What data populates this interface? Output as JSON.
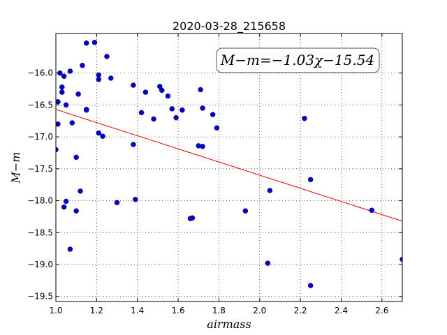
{
  "chart_data": {
    "type": "scatter",
    "title": "2020-03-28_215658",
    "xlabel": "airmass",
    "ylabel": "M−m",
    "xlim": [
      1.0,
      2.7
    ],
    "ylim": [
      -19.58,
      -15.38
    ],
    "xticks": [
      "1.0",
      "1.2",
      "1.4",
      "1.6",
      "1.8",
      "2.0",
      "2.2",
      "2.4",
      "2.6"
    ],
    "yticks": [
      "−16.0",
      "−16.5",
      "−17.0",
      "−17.5",
      "−18.0",
      "−18.5",
      "−19.0",
      "−19.5"
    ],
    "grid": true,
    "annotation": "M−m=−1.03χ−15.54",
    "point_color": "#0000cc",
    "fit_color": "#dd0000",
    "fit": {
      "slope": -1.03,
      "intercept": -15.54
    },
    "points": [
      [
        1.0,
        -17.2
      ],
      [
        1.01,
        -16.45
      ],
      [
        1.01,
        -16.8
      ],
      [
        1.02,
        -16.0
      ],
      [
        1.03,
        -16.3
      ],
      [
        1.03,
        -16.22
      ],
      [
        1.04,
        -16.05
      ],
      [
        1.04,
        -18.1
      ],
      [
        1.05,
        -16.5
      ],
      [
        1.05,
        -18.01
      ],
      [
        1.07,
        -15.97
      ],
      [
        1.07,
        -18.76
      ],
      [
        1.08,
        -16.78
      ],
      [
        1.1,
        -17.32
      ],
      [
        1.1,
        -18.16
      ],
      [
        1.11,
        -16.33
      ],
      [
        1.12,
        -17.85
      ],
      [
        1.13,
        -15.88
      ],
      [
        1.15,
        -15.53
      ],
      [
        1.15,
        -16.57
      ],
      [
        1.15,
        -16.58
      ],
      [
        1.19,
        -15.52
      ],
      [
        1.21,
        -16.03
      ],
      [
        1.21,
        -16.1
      ],
      [
        1.21,
        -16.94
      ],
      [
        1.23,
        -16.99
      ],
      [
        1.25,
        -15.74
      ],
      [
        1.27,
        -16.08
      ],
      [
        1.3,
        -18.03
      ],
      [
        1.38,
        -16.19
      ],
      [
        1.38,
        -17.12
      ],
      [
        1.39,
        -17.98
      ],
      [
        1.42,
        -16.62
      ],
      [
        1.44,
        -16.3
      ],
      [
        1.48,
        -16.72
      ],
      [
        1.51,
        -16.21
      ],
      [
        1.52,
        -16.27
      ],
      [
        1.55,
        -16.36
      ],
      [
        1.57,
        -16.56
      ],
      [
        1.59,
        -16.7
      ],
      [
        1.62,
        -16.58
      ],
      [
        1.66,
        -18.28
      ],
      [
        1.67,
        -18.27
      ],
      [
        1.7,
        -17.14
      ],
      [
        1.71,
        -16.26
      ],
      [
        1.72,
        -17.15
      ],
      [
        1.72,
        -16.55
      ],
      [
        1.77,
        -16.65
      ],
      [
        1.79,
        -16.86
      ],
      [
        1.93,
        -18.16
      ],
      [
        2.04,
        -18.98
      ],
      [
        2.05,
        -17.84
      ],
      [
        2.22,
        -16.71
      ],
      [
        2.25,
        -17.67
      ],
      [
        2.25,
        -19.33
      ],
      [
        2.55,
        -18.15
      ],
      [
        2.7,
        -18.92
      ]
    ]
  }
}
